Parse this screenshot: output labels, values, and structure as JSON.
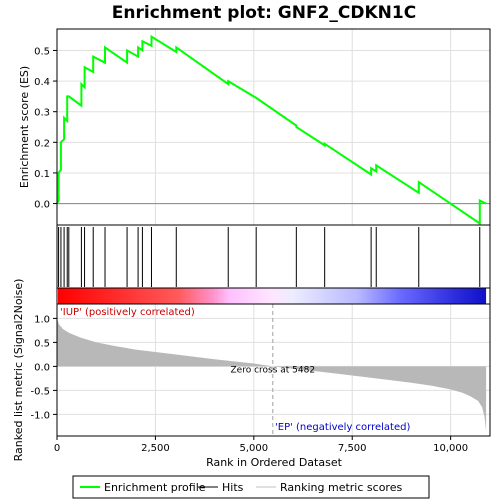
{
  "chart_data": {
    "type": "line",
    "title": "Enrichment plot: GNF2_CDKN1C",
    "top_panel": {
      "ylabel": "Enrichment score (ES)",
      "ylim": [
        -0.07,
        0.57
      ],
      "yticks": [
        0.0,
        0.1,
        0.2,
        0.3,
        0.4,
        0.5
      ],
      "ytick_labels": [
        "0.0",
        "0.1",
        "0.2",
        "0.3",
        "0.4",
        "0.5"
      ],
      "grid": true,
      "series": [
        {
          "name": "Enrichment profile",
          "color": "#00ff00",
          "x": [
            0,
            40,
            40,
            100,
            100,
            180,
            180,
            260,
            260,
            300,
            300,
            620,
            620,
            700,
            700,
            920,
            920,
            1220,
            1220,
            1780,
            1780,
            2060,
            2060,
            2170,
            2170,
            2400,
            2400,
            3030,
            3030,
            4350,
            4350,
            5060,
            5060,
            6080,
            6080,
            6800,
            6800,
            7980,
            7980,
            8110,
            8110,
            9190,
            9190,
            10740,
            10740,
            10900
          ],
          "y": [
            0.0,
            0.01,
            0.1,
            0.11,
            0.2,
            0.21,
            0.28,
            0.27,
            0.35,
            0.35,
            0.35,
            0.32,
            0.39,
            0.38,
            0.445,
            0.43,
            0.48,
            0.46,
            0.51,
            0.46,
            0.5,
            0.48,
            0.51,
            0.5,
            0.53,
            0.515,
            0.545,
            0.495,
            0.51,
            0.39,
            0.4,
            0.345,
            0.345,
            0.255,
            0.25,
            0.19,
            0.195,
            0.095,
            0.115,
            0.105,
            0.125,
            0.035,
            0.07,
            -0.065,
            0.01,
            0.0
          ]
        }
      ]
    },
    "hits": [
      40,
      100,
      180,
      260,
      300,
      620,
      700,
      920,
      1220,
      1780,
      2060,
      2170,
      2400,
      3030,
      4350,
      5060,
      6080,
      6800,
      7980,
      8110,
      9190,
      10740
    ],
    "bottom_panel": {
      "ylabel": "Ranked list metric (Signal2Noise)",
      "xlabel": "Rank in Ordered Dataset",
      "ylim": [
        -1.45,
        1.3
      ],
      "yticks": [
        -1.0,
        -0.5,
        0.0,
        0.5,
        1.0
      ],
      "ytick_labels": [
        "-1.0",
        "-0.5",
        "0.0",
        "0.5",
        "1.0"
      ],
      "grid": true,
      "metric_curve": {
        "x": [
          0,
          50,
          150,
          300,
          600,
          1000,
          1500,
          2000,
          3000,
          4000,
          5000,
          5482,
          6000,
          7000,
          8000,
          9000,
          9500,
          10000,
          10300,
          10500,
          10700,
          10800,
          10860,
          10900
        ],
        "y": [
          1.0,
          0.88,
          0.78,
          0.7,
          0.6,
          0.5,
          0.42,
          0.35,
          0.25,
          0.15,
          0.06,
          0.0,
          -0.05,
          -0.14,
          -0.24,
          -0.34,
          -0.4,
          -0.48,
          -0.55,
          -0.62,
          -0.72,
          -0.85,
          -1.05,
          -1.35
        ]
      },
      "zero_cross_label": "Zero cross at 5482",
      "zero_cross": 5482,
      "up_label": "'IUP' (positively correlated)",
      "down_label": "'EP' (negatively correlated)"
    },
    "xaxis": {
      "xlim": [
        0,
        11000
      ],
      "xticks": [
        0,
        2500,
        5000,
        7500,
        10000
      ],
      "xtick_labels": [
        "0",
        "2,500",
        "5,000",
        "7,500",
        "10,000"
      ],
      "n_genes": 10900
    },
    "legend": {
      "placement": "bottom",
      "entries": [
        {
          "label": "Enrichment profile",
          "color": "#00ff00"
        },
        {
          "label": "Hits",
          "color": "#000000"
        },
        {
          "label": "Ranking metric scores",
          "color": "#c0c0c0"
        }
      ]
    },
    "colors": {
      "profile": "#00ff00",
      "hits": "#000000",
      "metric": "#b8b8b8",
      "up_text": "#cc0000",
      "down_text": "#0000cc",
      "grid": "#e0e0e0"
    }
  }
}
